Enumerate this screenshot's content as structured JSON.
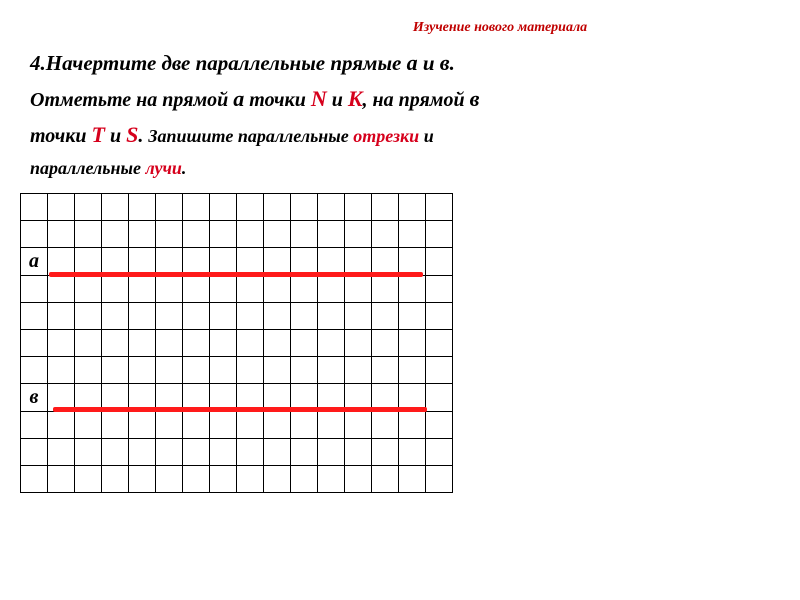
{
  "header": {
    "text": "Изучение нового материала",
    "color": "#c00000",
    "fontSize": 14,
    "italic": true,
    "bold": true
  },
  "task": {
    "number": "4.",
    "parts": [
      {
        "text": "Начертите две параллельные прямые  ",
        "bold": true,
        "italic": true,
        "fontSize": 21
      },
      {
        "text": "а",
        "bold": true,
        "italic": true,
        "fontSize": 22
      },
      {
        "text": " и ",
        "bold": true,
        "italic": true,
        "fontSize": 21
      },
      {
        "text": "в",
        "bold": true,
        "italic": true,
        "fontSize": 22
      },
      {
        "text": ".",
        "bold": true,
        "italic": true,
        "fontSize": 21
      }
    ],
    "line2": [
      {
        "text": "Отметьте на прямой ",
        "bold": true,
        "italic": true,
        "fontSize": 20
      },
      {
        "text": "а",
        "bold": true,
        "italic": true,
        "fontSize": 22
      },
      {
        "text": " точки ",
        "bold": true,
        "italic": true,
        "fontSize": 20
      },
      {
        "text": "N",
        "bold": true,
        "italic": true,
        "fontSize": 22,
        "color": "#d6001c"
      },
      {
        "text": " и ",
        "bold": true,
        "italic": true,
        "fontSize": 20
      },
      {
        "text": "K",
        "bold": true,
        "italic": true,
        "fontSize": 22,
        "color": "#d6001c"
      },
      {
        "text": ", на прямой ",
        "bold": true,
        "italic": true,
        "fontSize": 20
      },
      {
        "text": "в",
        "bold": true,
        "italic": true,
        "fontSize": 22
      }
    ],
    "line3": [
      {
        "text": "точки  ",
        "bold": true,
        "italic": true,
        "fontSize": 20
      },
      {
        "text": "T",
        "bold": true,
        "italic": true,
        "fontSize": 22,
        "color": "#d6001c"
      },
      {
        "text": " и ",
        "bold": true,
        "italic": true,
        "fontSize": 20
      },
      {
        "text": "S",
        "bold": true,
        "italic": true,
        "fontSize": 22,
        "color": "#d6001c"
      },
      {
        "text": ". ",
        "bold": true,
        "italic": true,
        "fontSize": 20
      },
      {
        "text": "Запишите параллельные ",
        "bold": true,
        "italic": true,
        "fontSize": 18
      },
      {
        "text": "отрезки",
        "bold": true,
        "italic": true,
        "fontSize": 18,
        "color": "#d6001c"
      },
      {
        "text": " и",
        "bold": true,
        "italic": true,
        "fontSize": 18
      }
    ],
    "line4": [
      {
        "text": "параллельные ",
        "bold": true,
        "italic": true,
        "fontSize": 18
      },
      {
        "text": "лучи",
        "bold": true,
        "italic": true,
        "fontSize": 18,
        "color": "#d6001c"
      },
      {
        "text": ".",
        "bold": true,
        "italic": true,
        "fontSize": 18
      }
    ]
  },
  "grid": {
    "cols": 16,
    "rows": 11,
    "cellSize": 27,
    "labelA": {
      "text": "а",
      "row": 2,
      "col": 0
    },
    "labelB": {
      "text": "в",
      "row": 7,
      "col": 0
    },
    "lineA": {
      "row": 3,
      "colStart": 1,
      "colEnd": 15,
      "color": "#ff1a1a"
    },
    "lineB": {
      "row": 8,
      "colStart": 1,
      "colEnd": 15,
      "color": "#ff1a1a"
    }
  }
}
